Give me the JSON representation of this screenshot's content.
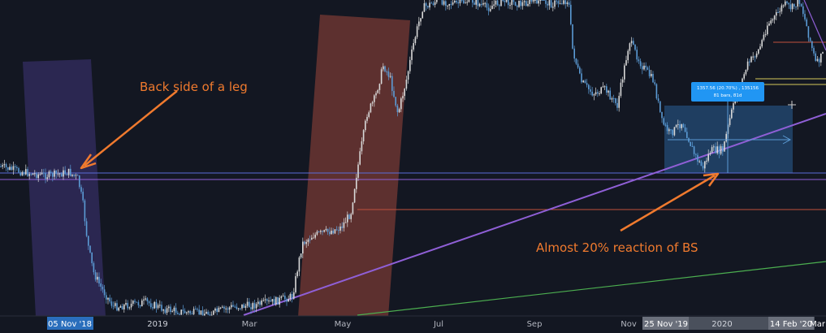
{
  "chart_data": {
    "type": "candlestick",
    "x_axis_ticks": [
      "2019",
      "Mar",
      "May",
      "Jul",
      "Sep",
      "Nov",
      "2020"
    ],
    "x_axis_highlight_labels": [
      "05 Nov '18",
      "25 Nov '19",
      "14 Feb '20",
      "Mar"
    ],
    "annotations": {
      "left_note": "Back side of a leg",
      "right_note": "Almost 20% reaction of BS"
    },
    "measure_tooltip": {
      "line1": "1357.56 (20.70%) , 135156",
      "line2": "81 bars, 81d"
    },
    "colors": {
      "background": "#131722",
      "candle_up": "#d9d9d9",
      "candle_down": "#5b9bd5",
      "annotation_text": "#f07a2e",
      "arrow": "#f07a2e",
      "trendline_purple": "#8f5fd6",
      "trendline_green": "#4caf50",
      "zone_purple": "#4a3c8c",
      "zone_red": "#a84a3c",
      "zone_blue": "#2f6fb0",
      "axis_highlight": "#2a6ebc",
      "axis_grey": "#555a66"
    }
  }
}
